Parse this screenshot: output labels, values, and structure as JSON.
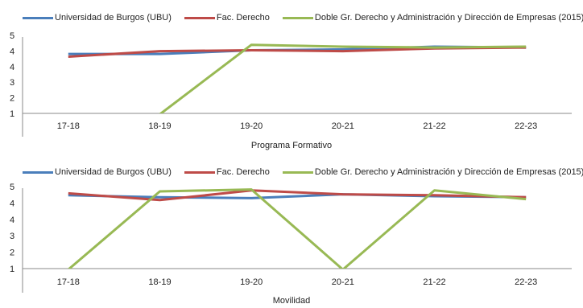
{
  "chart_data": [
    {
      "type": "line",
      "xlabel": "Programa Formativo",
      "ylabel": "",
      "categories": [
        "17-18",
        "18-19",
        "19-20",
        "20-21",
        "21-22",
        "22-23"
      ],
      "yticks": [
        "1",
        "2",
        "3",
        "4",
        "4",
        "5"
      ],
      "ylim": [
        1,
        5
      ],
      "legend_position": "top",
      "series": [
        {
          "name": "Universidad de Burgos (UBU)",
          "color": "#4a7ebb",
          "values": [
            4.25,
            4.25,
            4.45,
            4.5,
            4.65,
            4.6
          ]
        },
        {
          "name": "Fac. Derecho",
          "color": "#be4b48",
          "values": [
            4.1,
            4.4,
            4.45,
            4.4,
            4.55,
            4.6
          ]
        },
        {
          "name": "Doble Gr. Derecho y Administración y Dirección de Empresas (2015)",
          "color": "#98b954",
          "values": [
            null,
            0.95,
            4.75,
            4.65,
            4.6,
            4.65
          ]
        }
      ]
    },
    {
      "type": "line",
      "xlabel": "Movilidad",
      "ylabel": "",
      "categories": [
        "17-18",
        "18-19",
        "19-20",
        "20-21",
        "21-22",
        "22-23"
      ],
      "yticks": [
        "1",
        "2",
        "3",
        "4",
        "4",
        "5"
      ],
      "ylim": [
        1,
        5
      ],
      "legend_position": "top",
      "series": [
        {
          "name": "Universidad de Burgos (UBU)",
          "color": "#4a7ebb",
          "values": [
            4.8,
            4.7,
            4.65,
            4.85,
            4.75,
            4.7
          ]
        },
        {
          "name": "Fac. Derecho",
          "color": "#be4b48",
          "values": [
            4.9,
            4.55,
            5.05,
            4.85,
            4.8,
            4.7
          ]
        },
        {
          "name": "Doble Gr. Derecho y Administración y Dirección de Empresas (2015)",
          "color": "#98b954",
          "values": [
            0.95,
            5.0,
            5.1,
            0.95,
            5.05,
            4.6
          ]
        }
      ]
    }
  ]
}
